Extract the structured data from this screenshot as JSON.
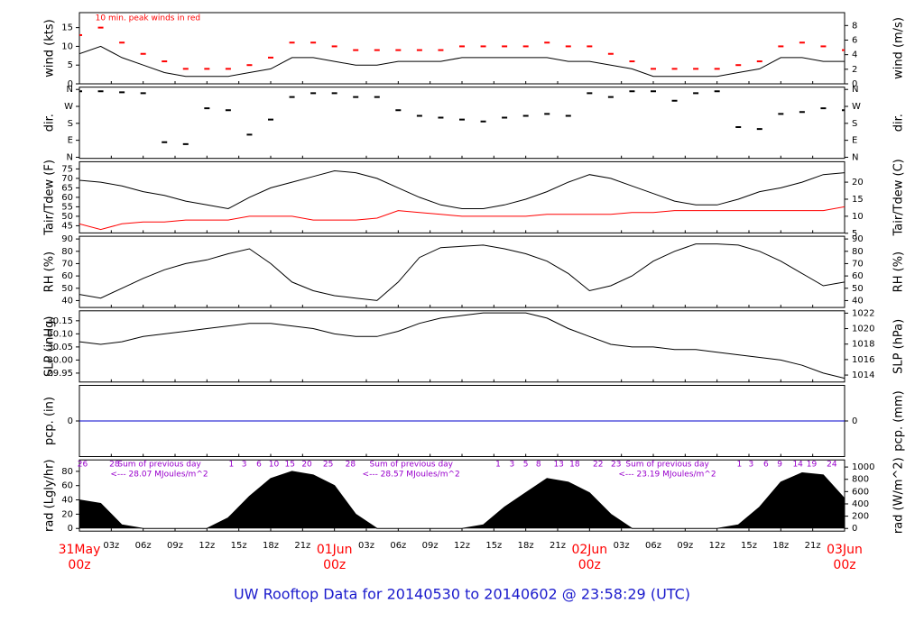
{
  "footer": "UW Rooftop Data for 20140530  to  20140602 @ 23:58:29  (UTC)",
  "chart_data": [
    {
      "type": "line",
      "ylabel": "wind (kts)",
      "y2label": "wind (m/s)",
      "ylim": [
        0,
        19
      ],
      "yticks": [
        0,
        5,
        10,
        15
      ],
      "y2lim": [
        0,
        9.77
      ],
      "y2ticks": [
        0,
        2,
        4,
        6,
        8
      ],
      "annotation": "10 min. peak winds in red",
      "annotation_x": 1.5,
      "annotation_color": "#ff0000",
      "x": [
        0,
        2,
        4,
        6,
        8,
        10,
        12,
        14,
        16,
        18,
        20,
        22,
        24,
        26,
        28,
        30,
        32,
        34,
        36,
        38,
        40,
        42,
        44,
        46,
        48,
        50,
        52,
        54,
        56,
        58,
        60,
        62,
        64,
        66,
        68,
        70,
        72
      ],
      "series": [
        {
          "name": "wind",
          "color": "#000000",
          "style": "line",
          "values": [
            8,
            10,
            7,
            5,
            3,
            2,
            2,
            2,
            3,
            4,
            7,
            7,
            6,
            5,
            5,
            6,
            6,
            6,
            7,
            7,
            7,
            7,
            7,
            6,
            6,
            5,
            4,
            2,
            2,
            2,
            2,
            3,
            4,
            7,
            7,
            6,
            6
          ]
        },
        {
          "name": "peak",
          "color": "#ff0000",
          "style": "points",
          "values": [
            13,
            15,
            11,
            8,
            6,
            4,
            4,
            4,
            5,
            7,
            11,
            11,
            10,
            9,
            9,
            9,
            9,
            9,
            10,
            10,
            10,
            10,
            11,
            10,
            10,
            8,
            6,
            4,
            4,
            4,
            4,
            5,
            6,
            10,
            11,
            10,
            9
          ]
        }
      ]
    },
    {
      "type": "scatter",
      "ylabel": "dir.",
      "y2label": "dir.",
      "ylim": [
        -6,
        372
      ],
      "yticks": [
        {
          "value": 0,
          "label": "N"
        },
        {
          "value": 90,
          "label": "E"
        },
        {
          "value": 180,
          "label": "S"
        },
        {
          "value": 270,
          "label": "W"
        },
        {
          "value": 360,
          "label": "N"
        }
      ],
      "y2lim": [
        -6,
        372
      ],
      "y2ticks": [
        {
          "value": 0,
          "label": "N"
        },
        {
          "value": 90,
          "label": "E"
        },
        {
          "value": 180,
          "label": "S"
        },
        {
          "value": 270,
          "label": "W"
        },
        {
          "value": 360,
          "label": "N"
        }
      ],
      "x": [
        0,
        2,
        4,
        6,
        8,
        10,
        12,
        14,
        16,
        18,
        20,
        22,
        24,
        26,
        28,
        30,
        32,
        34,
        36,
        38,
        40,
        42,
        44,
        46,
        48,
        50,
        52,
        54,
        56,
        58,
        60,
        62,
        64,
        66,
        68,
        70,
        72
      ],
      "series": [
        {
          "name": "direction",
          "color": "#000000",
          "values": [
            350,
            350,
            345,
            340,
            80,
            70,
            260,
            250,
            120,
            200,
            320,
            340,
            340,
            320,
            320,
            250,
            220,
            210,
            200,
            190,
            210,
            220,
            230,
            220,
            340,
            320,
            350,
            350,
            300,
            340,
            350,
            160,
            150,
            230,
            240,
            260,
            250
          ]
        }
      ]
    },
    {
      "type": "line",
      "ylabel": "Tair/Tdew (F)",
      "y2label": "Tair/Tdew (C)",
      "ylim": [
        41.2,
        78.8
      ],
      "yticks": [
        45,
        50,
        55,
        60,
        65,
        70,
        75
      ],
      "y2lim": [
        5.1,
        26
      ],
      "y2ticks": [
        5,
        10,
        15,
        20
      ],
      "x": [
        0,
        2,
        4,
        6,
        8,
        10,
        12,
        14,
        16,
        18,
        20,
        22,
        24,
        26,
        28,
        30,
        32,
        34,
        36,
        38,
        40,
        42,
        44,
        46,
        48,
        50,
        52,
        54,
        56,
        58,
        60,
        62,
        64,
        66,
        68,
        70,
        72
      ],
      "series": [
        {
          "name": "Tair",
          "color": "#000000",
          "style": "line",
          "values": [
            69,
            68,
            66,
            63,
            61,
            58,
            56,
            54,
            60,
            65,
            68,
            71,
            74,
            73,
            70,
            65,
            60,
            56,
            54,
            54,
            56,
            59,
            63,
            68,
            72,
            70,
            66,
            62,
            58,
            56,
            56,
            59,
            63,
            65,
            68,
            72,
            73
          ]
        },
        {
          "name": "Tdew",
          "color": "#ff0000",
          "style": "line",
          "values": [
            46,
            43,
            46,
            47,
            47,
            48,
            48,
            48,
            50,
            50,
            50,
            48,
            48,
            48,
            49,
            53,
            52,
            51,
            50,
            50,
            50,
            50,
            51,
            51,
            51,
            51,
            52,
            52,
            53,
            53,
            53,
            53,
            53,
            53,
            53,
            53,
            55
          ]
        }
      ]
    },
    {
      "type": "line",
      "ylabel": "RH (%)",
      "y2label": "RH (%)",
      "ylim": [
        34.4,
        92.2
      ],
      "yticks": [
        40,
        50,
        60,
        70,
        80,
        90
      ],
      "y2lim": [
        34.4,
        92.2
      ],
      "y2ticks": [
        40,
        50,
        60,
        70,
        80,
        90
      ],
      "x": [
        0,
        2,
        4,
        6,
        8,
        10,
        12,
        14,
        16,
        18,
        20,
        22,
        24,
        26,
        28,
        30,
        32,
        34,
        36,
        38,
        40,
        42,
        44,
        46,
        48,
        50,
        52,
        54,
        56,
        58,
        60,
        62,
        64,
        66,
        68,
        70,
        72
      ],
      "series": [
        {
          "name": "RH",
          "color": "#000000",
          "style": "line",
          "values": [
            45,
            42,
            50,
            58,
            65,
            70,
            73,
            78,
            82,
            70,
            55,
            48,
            44,
            42,
            40,
            55,
            75,
            83,
            84,
            85,
            82,
            78,
            72,
            62,
            48,
            52,
            60,
            72,
            80,
            86,
            86,
            85,
            80,
            72,
            62,
            52,
            55
          ]
        }
      ]
    },
    {
      "type": "line",
      "ylabel": "SLP (inHg)",
      "y2label": "SLP (hPa)",
      "ylim": [
        29.916,
        30.188
      ],
      "yticks": [
        29.95,
        {
          "value": 30,
          "label": "30.00"
        },
        30.05,
        {
          "value": 30.1,
          "label": "30.10"
        },
        30.15
      ],
      "y2lim": [
        1013.1,
        1022.3
      ],
      "y2ticks": [
        1014,
        1016,
        1018,
        1020,
        1022
      ],
      "x": [
        0,
        2,
        4,
        6,
        8,
        10,
        12,
        14,
        16,
        18,
        20,
        22,
        24,
        26,
        28,
        30,
        32,
        34,
        36,
        38,
        40,
        42,
        44,
        46,
        48,
        50,
        52,
        54,
        56,
        58,
        60,
        62,
        64,
        66,
        68,
        70,
        72
      ],
      "series": [
        {
          "name": "SLP",
          "color": "#000000",
          "style": "line",
          "values": [
            30.07,
            30.06,
            30.07,
            30.09,
            30.1,
            30.11,
            30.12,
            30.13,
            30.14,
            30.14,
            30.13,
            30.12,
            30.1,
            30.09,
            30.09,
            30.11,
            30.14,
            30.16,
            30.17,
            30.18,
            30.18,
            30.18,
            30.16,
            30.12,
            30.09,
            30.06,
            30.05,
            30.05,
            30.04,
            30.04,
            30.03,
            30.02,
            30.01,
            30,
            29.98,
            29.95,
            29.93
          ]
        }
      ]
    },
    {
      "type": "line",
      "ylabel": "pcp. (in)",
      "y2label": "pcp. (mm)",
      "ylim": [
        -0.1,
        0.1
      ],
      "yticks": [
        0
      ],
      "y2lim": [
        -2.54,
        2.54
      ],
      "y2ticks": [
        0
      ],
      "x": [
        0,
        72
      ],
      "series": [
        {
          "name": "pcp",
          "color": "#0000cc",
          "style": "line",
          "values": [
            0,
            0
          ]
        }
      ]
    },
    {
      "type": "area",
      "ylabel": "rad (Lgly/hr)",
      "y2label": "rad (W/m^2)",
      "ylim": [
        -3.75,
        96
      ],
      "yticks": [
        0,
        20,
        40,
        60,
        80
      ],
      "y2lim": [
        -43.6,
        1116
      ],
      "y2ticks": [
        0,
        200,
        400,
        600,
        800,
        1000
      ],
      "xlim": [
        0,
        72
      ],
      "xticks": [
        {
          "value": 3,
          "label": "03z"
        },
        {
          "value": 6,
          "label": "06z"
        },
        {
          "value": 9,
          "label": "09z"
        },
        {
          "value": 12,
          "label": "12z"
        },
        {
          "value": 15,
          "label": "15z"
        },
        {
          "value": 18,
          "label": "18z"
        },
        {
          "value": 21,
          "label": "21z"
        },
        {
          "value": 27,
          "label": "03z"
        },
        {
          "value": 30,
          "label": "06z"
        },
        {
          "value": 33,
          "label": "09z"
        },
        {
          "value": 36,
          "label": "12z"
        },
        {
          "value": 39,
          "label": "15z"
        },
        {
          "value": 42,
          "label": "18z"
        },
        {
          "value": 45,
          "label": "21z"
        },
        {
          "value": 51,
          "label": "03z"
        },
        {
          "value": 54,
          "label": "06z"
        },
        {
          "value": 57,
          "label": "09z"
        },
        {
          "value": 60,
          "label": "12z"
        },
        {
          "value": 63,
          "label": "15z"
        },
        {
          "value": 66,
          "label": "18z"
        },
        {
          "value": 69,
          "label": "21z"
        }
      ],
      "date_ticks": [
        {
          "value": 0,
          "label": "31May",
          "sublabel": "00z"
        },
        {
          "value": 24,
          "label": "01Jun",
          "sublabel": "00z"
        },
        {
          "value": 48,
          "label": "02Jun",
          "sublabel": "00z"
        },
        {
          "value": 72,
          "label": "03Jun",
          "sublabel": "00z"
        }
      ],
      "hour_marks": [
        {
          "x": 0.3,
          "label": "26"
        },
        {
          "x": 3.3,
          "label": "28"
        },
        {
          "x": 14.3,
          "label": "1"
        },
        {
          "x": 15.5,
          "label": "3"
        },
        {
          "x": 16.9,
          "label": "6"
        },
        {
          "x": 18.3,
          "label": "10"
        },
        {
          "x": 19.8,
          "label": "15"
        },
        {
          "x": 21.4,
          "label": "20"
        },
        {
          "x": 23.4,
          "label": "25"
        },
        {
          "x": 25.5,
          "label": "28"
        },
        {
          "x": 39.4,
          "label": "1"
        },
        {
          "x": 40.7,
          "label": "3"
        },
        {
          "x": 42.0,
          "label": "5"
        },
        {
          "x": 43.2,
          "label": "8"
        },
        {
          "x": 45.1,
          "label": "13"
        },
        {
          "x": 46.6,
          "label": "18"
        },
        {
          "x": 48.8,
          "label": "22"
        },
        {
          "x": 50.5,
          "label": "23"
        },
        {
          "x": 62.1,
          "label": "1"
        },
        {
          "x": 63.2,
          "label": "3"
        },
        {
          "x": 64.6,
          "label": "6"
        },
        {
          "x": 65.9,
          "label": "9"
        },
        {
          "x": 67.6,
          "label": "14"
        },
        {
          "x": 68.9,
          "label": "19"
        },
        {
          "x": 70.8,
          "label": "24"
        }
      ],
      "daily_sums": [
        {
          "x": 3.6,
          "label": "Sum of previous day",
          "total": "<--- 28.07 MJoules/m^2"
        },
        {
          "x": 27.3,
          "label": "Sum of previous day",
          "total": "<--- 28.57 MJoules/m^2"
        },
        {
          "x": 51.4,
          "label": "Sum of previous day",
          "total": "<--- 23.19 MJoules/m^2"
        }
      ],
      "annotation_color": "#9900cc",
      "date_color": "#ff0000",
      "x": [
        0,
        2,
        4,
        6,
        8,
        10,
        12,
        14,
        16,
        18,
        20,
        22,
        24,
        26,
        28,
        30,
        32,
        34,
        36,
        38,
        40,
        42,
        44,
        46,
        48,
        50,
        52,
        54,
        56,
        58,
        60,
        62,
        64,
        66,
        68,
        70,
        72
      ],
      "series": [
        {
          "name": "radiation",
          "color": "#000000",
          "values": [
            40,
            35,
            5,
            0,
            0,
            0,
            0,
            15,
            45,
            70,
            80,
            75,
            60,
            20,
            0,
            0,
            0,
            0,
            0,
            5,
            30,
            50,
            70,
            65,
            50,
            20,
            0,
            0,
            0,
            0,
            0,
            5,
            30,
            65,
            78,
            75,
            42
          ]
        }
      ]
    }
  ]
}
